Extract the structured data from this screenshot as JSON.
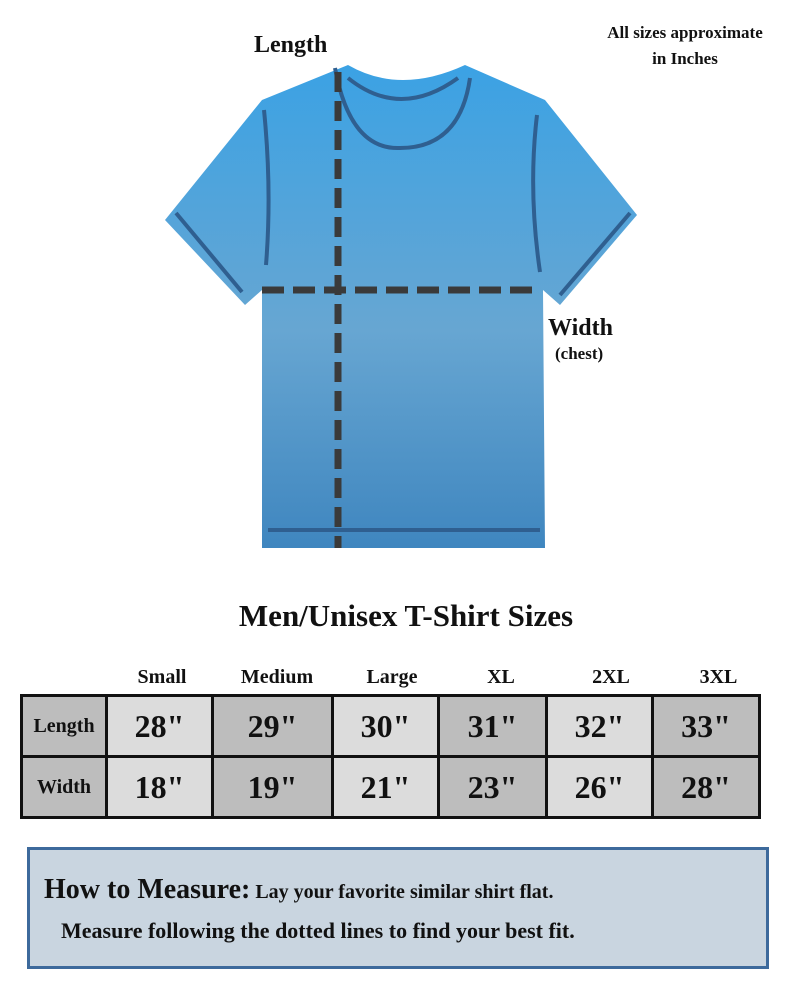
{
  "note": {
    "line1": "All sizes approximate",
    "line2": "in Inches"
  },
  "diagram": {
    "length_label": "Length",
    "width_label": "Width",
    "width_sublabel": "(chest)",
    "shirt_color_top": "#3ba2e4",
    "shirt_color_bottom": "#3f86bf",
    "measure_line_color": "#3a3a3a"
  },
  "table": {
    "title": "Men/Unisex T-Shirt Sizes",
    "columns": [
      "Small",
      "Medium",
      "Large",
      "XL",
      "2XL",
      "3XL"
    ],
    "rows": [
      {
        "label": "Length",
        "values": [
          "28\"",
          "29\"",
          "30\"",
          "31\"",
          "32\"",
          "33\""
        ]
      },
      {
        "label": "Width",
        "values": [
          "18\"",
          "19\"",
          "21\"",
          "23\"",
          "26\"",
          "28\""
        ]
      }
    ],
    "cell_light": "#dcdcdc",
    "cell_dark": "#bdbdbd"
  },
  "how_to": {
    "heading": "How to Measure:",
    "text1": "Lay your favorite similar shirt flat.",
    "text2": "Measure following the dotted lines to find your best fit."
  }
}
